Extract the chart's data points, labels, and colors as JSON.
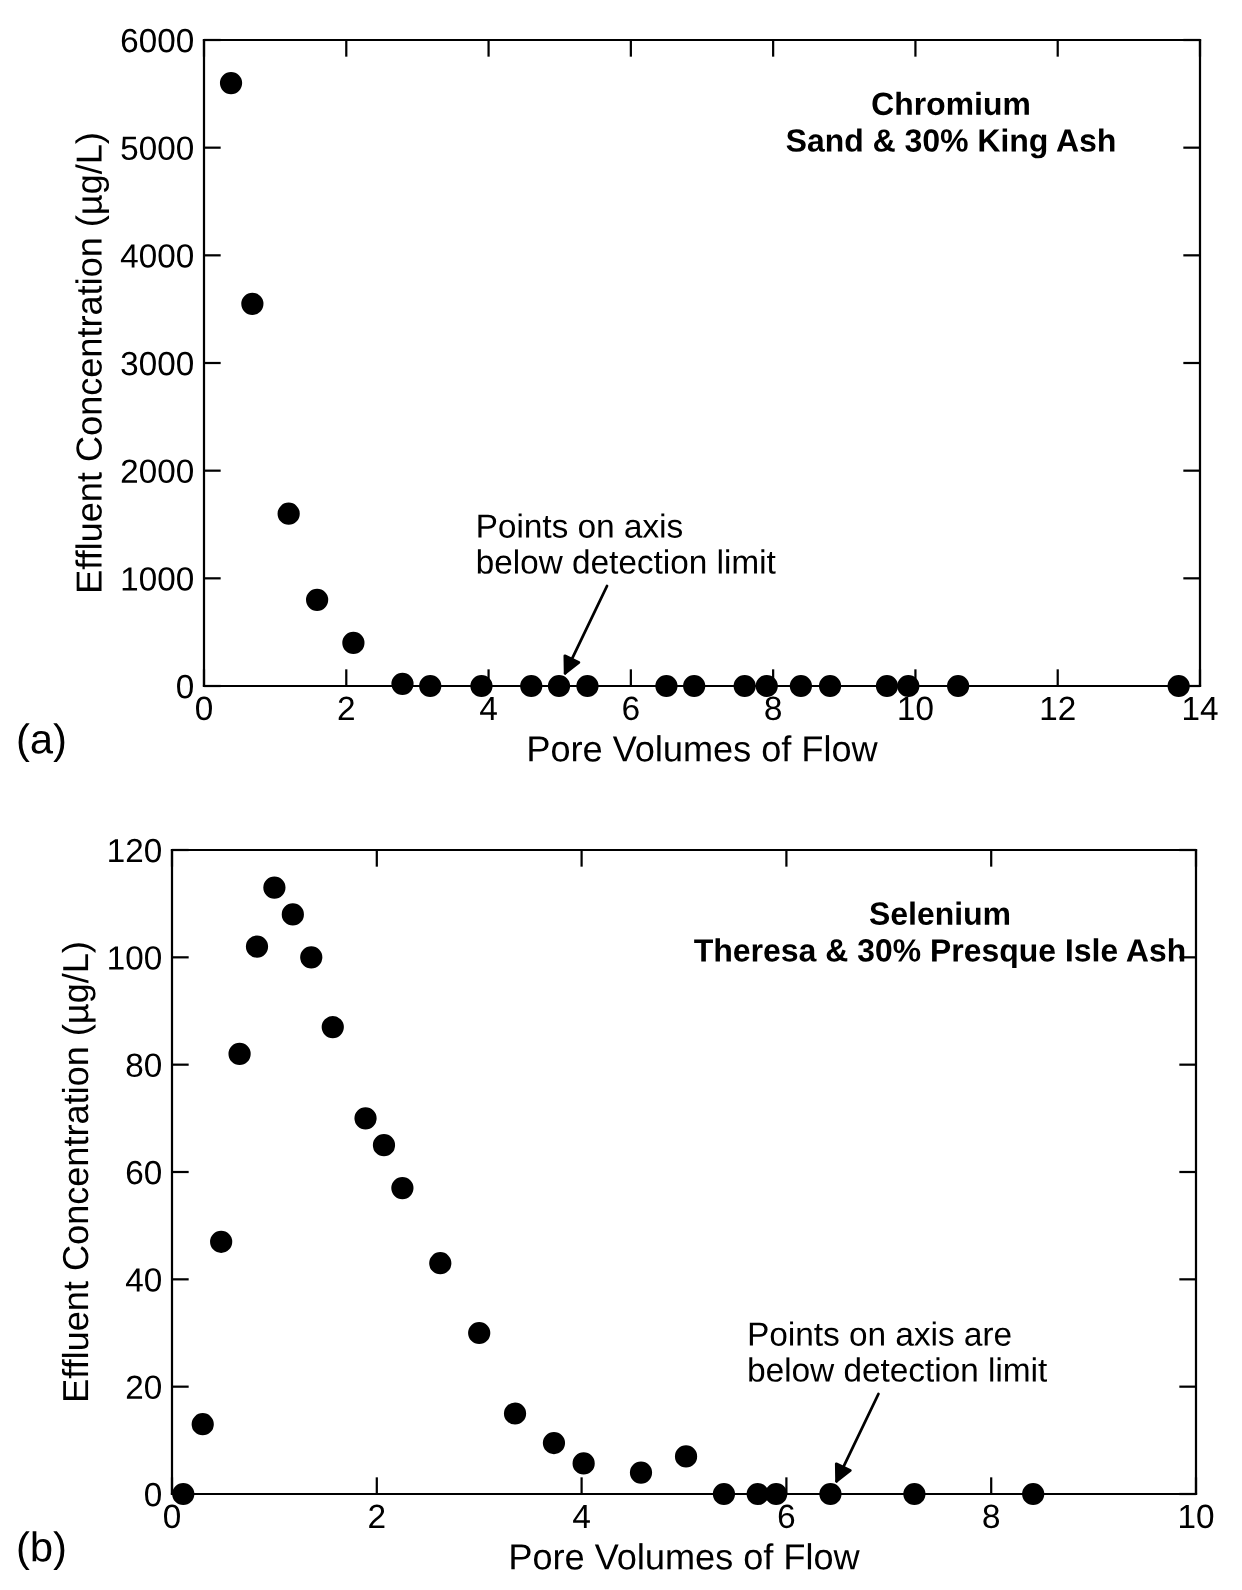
{
  "chart_data": [
    {
      "type": "scatter",
      "title": "Chromium",
      "subtitle": "Sand & 30% King Ash",
      "xlabel": "Pore Volumes of Flow",
      "ylabel": "Effluent Concentration (µg/L)",
      "x": [
        0.38,
        0.68,
        1.19,
        1.59,
        2.1,
        2.79,
        3.18,
        3.9,
        4.6,
        4.99,
        5.39,
        6.5,
        6.89,
        7.6,
        7.91,
        8.39,
        8.8,
        9.6,
        9.9,
        10.6,
        13.7
      ],
      "values": [
        5600,
        3550,
        1600,
        800,
        400,
        20,
        0,
        0,
        0,
        0,
        0,
        0,
        0,
        0,
        0,
        0,
        0,
        0,
        0,
        0,
        0
      ],
      "color": "#000000",
      "marker": "circle",
      "xlim": [
        0,
        14
      ],
      "xticks": [
        0,
        2,
        4,
        6,
        8,
        10,
        12,
        14
      ],
      "ylim": [
        0,
        6000
      ],
      "yticks": [
        0,
        1000,
        2000,
        3000,
        4000,
        5000,
        6000
      ],
      "grid": false,
      "legend": false,
      "annotations": [
        {
          "text": "Points on axis\nbelow detection limit",
          "x": 4.99,
          "y": 0
        },
        "(a)"
      ]
    },
    {
      "type": "scatter",
      "title": "Selenium",
      "subtitle": "Theresa & 30% Presque Isle Ash",
      "xlabel": "Pore Volumes of Flow",
      "ylabel": "Effluent Concentration (µg/L)",
      "x": [
        0.11,
        0.3,
        0.48,
        0.66,
        0.83,
        1.0,
        1.18,
        1.36,
        1.57,
        1.89,
        2.07,
        2.25,
        2.62,
        3.0,
        3.35,
        3.73,
        4.02,
        4.58,
        5.02,
        5.39,
        5.72,
        5.9,
        6.43,
        7.25,
        8.41
      ],
      "values": [
        0,
        13,
        47,
        82,
        102,
        113,
        108,
        100,
        87,
        70,
        65,
        57,
        43,
        30,
        15,
        9.5,
        5.7,
        4,
        7,
        0,
        0,
        0,
        0,
        0,
        0
      ],
      "color": "#000000",
      "marker": "circle",
      "xlim": [
        0,
        10
      ],
      "xticks": [
        0,
        2,
        4,
        6,
        8,
        10
      ],
      "ylim": [
        0,
        120
      ],
      "yticks": [
        0,
        20,
        40,
        60,
        80,
        100,
        120
      ],
      "grid": false,
      "legend": false,
      "annotations": [
        {
          "text": "Points on axis are\nbelow detection limit",
          "x": 6.43,
          "y": 0
        },
        "(b)"
      ]
    }
  ]
}
